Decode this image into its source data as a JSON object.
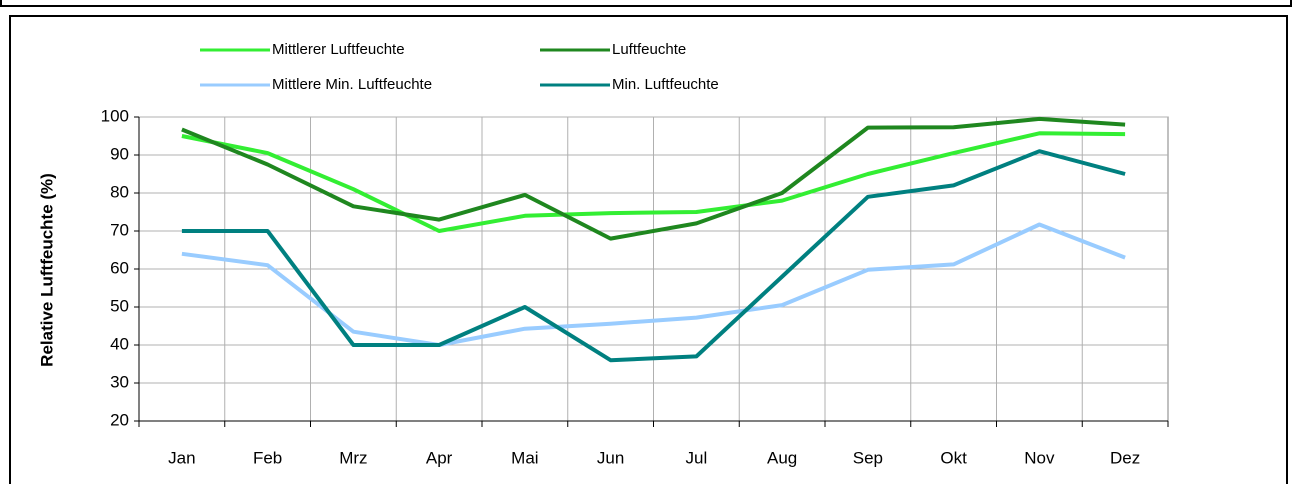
{
  "chart_data": {
    "type": "line",
    "y_label": "Relative Luftfeuchte (%)",
    "categories": [
      "Jan",
      "Feb",
      "Mrz",
      "Apr",
      "Mai",
      "Jun",
      "Jul",
      "Aug",
      "Sep",
      "Okt",
      "Nov",
      "Dez"
    ],
    "series": [
      {
        "name": "Mittlerer Luftfeuchte",
        "color": "#33ee33",
        "values": [
          95,
          90.5,
          81,
          70,
          74,
          74.7,
          75,
          78,
          85,
          90.5,
          95.7,
          95.5
        ]
      },
      {
        "name": "Luftfeuchte",
        "color": "#1f871f",
        "values": [
          96.7,
          87.5,
          76.5,
          73,
          79.5,
          68,
          72,
          80,
          97.2,
          97.3,
          99.5,
          98
        ]
      },
      {
        "name": "Mittlere Min. Luftfeuchte",
        "color": "#99ccff",
        "values": [
          64,
          61,
          43.5,
          40,
          44.3,
          45.6,
          47.2,
          50.5,
          59.8,
          61.2,
          71.7,
          63
        ]
      },
      {
        "name": "Min. Luftfeuchte",
        "color": "#008080",
        "values": [
          70,
          70,
          40,
          40,
          50,
          36,
          37,
          58,
          79,
          82,
          91,
          85
        ]
      }
    ],
    "ylim": [
      20,
      100
    ],
    "yticks": [
      20,
      30,
      40,
      50,
      60,
      70,
      80,
      90,
      100
    ],
    "grid": true
  }
}
